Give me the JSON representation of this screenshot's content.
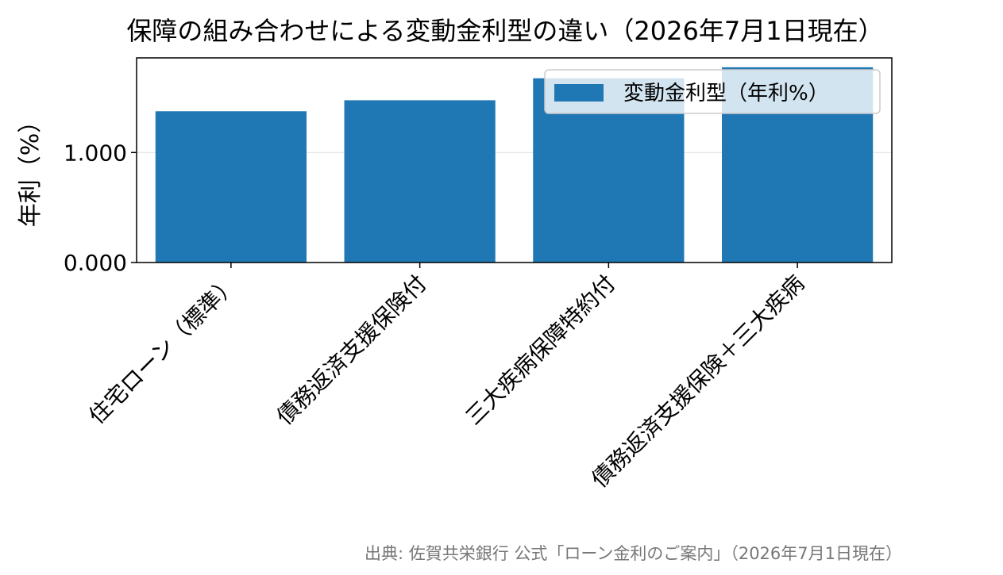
{
  "chart_data": {
    "type": "bar",
    "title": "保障の組み合わせによる変動金利型の違い（2026年7月1日現在）",
    "xlabel": "",
    "ylabel": "年利（%）",
    "categories": [
      "住宅ローン（標準）",
      "債務返済支援保険付",
      "三大疾病保障特約付",
      "債務返済支援保険＋三大疾病"
    ],
    "series": [
      {
        "name": "変動金利型（年利%）",
        "values": [
          1.375,
          1.475,
          1.675,
          1.775
        ]
      }
    ],
    "ylim": [
      0,
      1.86
    ],
    "yticks": [
      0,
      1
    ],
    "ytick_labels": [
      "0.000",
      "1.000"
    ],
    "grid": true,
    "legend_position": "upper-right",
    "bar_color": "#1f77b4"
  },
  "footer": {
    "source": "出典: 佐賀共栄銀行 公式「ローン金利のご案内」（2026年7月1日現在）"
  }
}
